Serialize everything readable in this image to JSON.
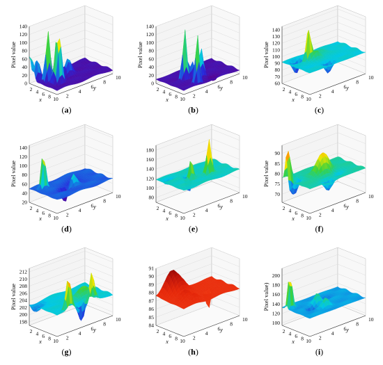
{
  "figure": {
    "panels": [
      {
        "id": "a",
        "label": "a",
        "ylabel": "Pixel value",
        "ticks": [
          "0",
          "20",
          "40",
          "60",
          "80",
          "100",
          "120",
          "140"
        ],
        "zmin": 0,
        "zmax": 140,
        "base": 10,
        "palette": "rainbow",
        "cmin": 0,
        "cmax": 140,
        "peaks": [
          {
            "x": 4.6,
            "y": 2.2,
            "h": 128,
            "w": 0.35
          },
          {
            "x": 6.9,
            "y": 2.9,
            "h": 117,
            "w": 0.35
          },
          {
            "x": 6.2,
            "y": 2.7,
            "h": 82,
            "w": 0.3
          },
          {
            "x": 2.5,
            "y": 1.5,
            "h": 52,
            "w": 0.4
          },
          {
            "x": 5.2,
            "y": 5.2,
            "h": 40,
            "w": 0.5
          },
          {
            "x": 1.1,
            "y": 1.1,
            "h": 58,
            "w": 0.5
          }
        ]
      },
      {
        "id": "b",
        "label": "b",
        "ylabel": "Pixel value",
        "ticks": [
          "0",
          "20",
          "40",
          "60",
          "80",
          "100",
          "120",
          "140"
        ],
        "zmin": 0,
        "zmax": 140,
        "base": 10,
        "palette": "rainbow",
        "cmin": 0,
        "cmax": 140,
        "peaks": [
          {
            "x": 5.4,
            "y": 3.4,
            "h": 130,
            "w": 0.3
          },
          {
            "x": 8.8,
            "y": 3.8,
            "h": 118,
            "w": 0.3
          },
          {
            "x": 6.7,
            "y": 5.4,
            "h": 70,
            "w": 0.35
          },
          {
            "x": 5.6,
            "y": 4.6,
            "h": 40,
            "w": 0.35
          },
          {
            "x": 8.4,
            "y": 6.5,
            "h": -25,
            "w": 0.4
          }
        ]
      },
      {
        "id": "c",
        "label": "c",
        "ylabel": "Pixel value",
        "ticks": [
          "60",
          "70",
          "80",
          "90",
          "100",
          "110",
          "120",
          "130",
          "140"
        ],
        "zmin": 60,
        "zmax": 145,
        "base": 92,
        "palette": "rainbow",
        "cmin": 60,
        "cmax": 145,
        "peaks": [
          {
            "x": 4.5,
            "y": 3.5,
            "h": 52,
            "w": 0.3
          },
          {
            "x": 5.2,
            "y": 4.4,
            "h": 14,
            "w": 0.6
          },
          {
            "x": 2.5,
            "y": 2.5,
            "h": -20,
            "w": 0.5
          },
          {
            "x": 8.3,
            "y": 4.8,
            "h": -16,
            "w": 0.5
          },
          {
            "x": 3.6,
            "y": 5.9,
            "h": 6,
            "w": 0.9
          }
        ]
      },
      {
        "id": "d",
        "label": "d",
        "ylabel": "Pixel value",
        "ticks": [
          "20",
          "40",
          "60",
          "80",
          "100",
          "120",
          "140"
        ],
        "zmin": 20,
        "zmax": 145,
        "base": 50,
        "palette": "rainbow",
        "cmin": 20,
        "cmax": 145,
        "peaks": [
          {
            "x": 2.8,
            "y": 2.4,
            "h": 90,
            "w": 0.3
          },
          {
            "x": 6.2,
            "y": 4.2,
            "h": -35,
            "w": 0.5
          },
          {
            "x": 6.4,
            "y": 5.4,
            "h": 25,
            "w": 0.5
          },
          {
            "x": 4.6,
            "y": 6.4,
            "h": -10,
            "w": 0.8
          }
        ]
      },
      {
        "id": "e",
        "label": "e",
        "ylabel": "",
        "ticks": [
          "80",
          "100",
          "120",
          "140",
          "160",
          "180"
        ],
        "zmin": 70,
        "zmax": 190,
        "base": 118,
        "palette": "rainbow",
        "cmin": 70,
        "cmax": 190,
        "peaks": [
          {
            "x": 6.7,
            "y": 6.7,
            "h": 72,
            "w": 0.35
          },
          {
            "x": 6.3,
            "y": 4.0,
            "h": 42,
            "w": 0.3
          },
          {
            "x": 4.5,
            "y": 4.5,
            "h": -45,
            "w": 0.3
          },
          {
            "x": 2.4,
            "y": 2.2,
            "h": -12,
            "w": 0.5
          }
        ]
      },
      {
        "id": "f",
        "label": "f",
        "ylabel": "Pixel value",
        "ticks": [
          "70",
          "75",
          "80",
          "85",
          "90"
        ],
        "zmin": 66,
        "zmax": 94,
        "base": 78,
        "palette": "rainbow",
        "cmin": 66,
        "cmax": 94,
        "peaks": [
          {
            "x": 2.4,
            "y": 1.3,
            "h": 16,
            "w": 0.4
          },
          {
            "x": 5.4,
            "y": 5.5,
            "h": 10,
            "w": 1.0
          },
          {
            "x": 3.6,
            "y": 1.6,
            "h": -8,
            "w": 0.6
          },
          {
            "x": 8.8,
            "y": 4.6,
            "h": -6,
            "w": 0.6
          },
          {
            "x": 6.8,
            "y": 6.8,
            "h": -4,
            "w": 0.8
          }
        ]
      },
      {
        "id": "g",
        "label": "g",
        "ylabel": "Pixel value",
        "ticks": [
          "198",
          "200",
          "202",
          "204",
          "206",
          "208",
          "210",
          "212"
        ],
        "zmin": 197,
        "zmax": 213,
        "base": 203,
        "palette": "rainbow",
        "cmin": 197,
        "cmax": 213,
        "peaks": [
          {
            "x": 9.3,
            "y": 3.2,
            "h": 9,
            "w": 0.4
          },
          {
            "x": 9.6,
            "y": 6.8,
            "h": 8,
            "w": 0.4
          },
          {
            "x": 9.4,
            "y": 5.2,
            "h": -5,
            "w": 0.4
          },
          {
            "x": 6.8,
            "y": 6.8,
            "h": 3,
            "w": 1.0
          },
          {
            "x": 2.4,
            "y": 1.6,
            "h": -2,
            "w": 0.8
          }
        ]
      },
      {
        "id": "h",
        "label": "h",
        "ylabel": "",
        "ticks": [
          "84",
          "85",
          "86",
          "87",
          "88",
          "89",
          "90",
          "91"
        ],
        "zmin": 84,
        "zmax": 91,
        "base": 87.4,
        "palette": "warm",
        "cmin": 84,
        "cmax": 91,
        "peaks": [
          {
            "x": 1.5,
            "y": 3.2,
            "h": 2.5,
            "w": 1.0
          },
          {
            "x": 3.4,
            "y": 3.6,
            "h": 1.8,
            "w": 1.0
          },
          {
            "x": 6.6,
            "y": 3.0,
            "h": 1.2,
            "w": 0.8
          },
          {
            "x": 8.6,
            "y": 3.4,
            "h": 1.0,
            "w": 0.6
          },
          {
            "x": 6.6,
            "y": 6.6,
            "h": -2.4,
            "w": 0.3
          }
        ]
      },
      {
        "id": "i",
        "label": "i",
        "ylabel": "Pixel value)",
        "ticks": [
          "100",
          "120",
          "140",
          "160",
          "180",
          "200"
        ],
        "zmin": 95,
        "zmax": 215,
        "base": 133,
        "palette": "rainbow",
        "cmin": 95,
        "cmax": 215,
        "peaks": [
          {
            "x": 2.4,
            "y": 1.6,
            "h": 78,
            "w": 0.3
          },
          {
            "x": 4.8,
            "y": 4.8,
            "h": 22,
            "w": 0.5
          },
          {
            "x": 7.6,
            "y": 4.7,
            "h": 18,
            "w": 0.5
          },
          {
            "x": 5.8,
            "y": 3.2,
            "h": -18,
            "w": 0.4
          },
          {
            "x": 3.5,
            "y": 6.4,
            "h": -10,
            "w": 0.6
          }
        ]
      }
    ],
    "x_ticks": [
      "2",
      "4",
      "6",
      "8",
      "10"
    ],
    "y_ticks": [
      "2",
      "4",
      "6",
      "8",
      "10"
    ],
    "x_axis_label": "x",
    "y_axis_label": "y",
    "caption_open": "(",
    "caption_close": ")"
  },
  "chart_data": {
    "type": "surface3d",
    "panels": [
      "(a)",
      "(b)",
      "(c)",
      "(d)",
      "(e)",
      "(f)",
      "(g)",
      "(h)",
      "(i)"
    ],
    "x_range": [
      1,
      10
    ],
    "y_range": [
      1,
      10
    ],
    "zlabel": "Pixel value",
    "z_ranges": {
      "a": [
        0,
        140
      ],
      "b": [
        0,
        140
      ],
      "c": [
        60,
        140
      ],
      "d": [
        20,
        140
      ],
      "e": [
        80,
        180
      ],
      "f": [
        70,
        90
      ],
      "g": [
        198,
        212
      ],
      "h": [
        84,
        91
      ],
      "i": [
        100,
        200
      ]
    },
    "palette": "rainbow"
  }
}
